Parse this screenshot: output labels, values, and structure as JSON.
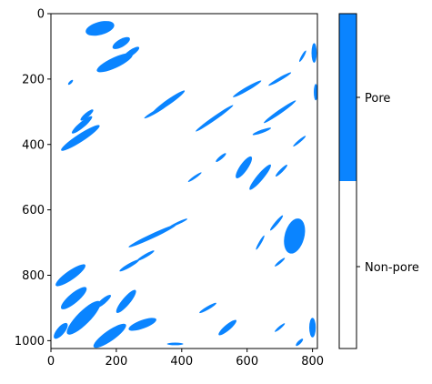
{
  "chart_data": {
    "type": "heatmap",
    "title": "",
    "xlabel": "",
    "ylabel": "",
    "x_range": [
      0,
      815
    ],
    "y_range": [
      0,
      1024
    ],
    "y_inverted": true,
    "x_ticks": [
      0,
      200,
      400,
      600,
      800
    ],
    "y_ticks": [
      0,
      200,
      400,
      600,
      800,
      1000
    ],
    "x_tick_labels": [
      "0",
      "200",
      "400",
      "600",
      "800"
    ],
    "y_tick_labels": [
      "0",
      "200",
      "400",
      "600",
      "800",
      "1000"
    ],
    "classes": [
      {
        "name": "Non-pore",
        "value": 0,
        "color": "#ffffff"
      },
      {
        "name": "Pore",
        "value": 1,
        "color": "#0a84ff"
      }
    ],
    "colorbar": {
      "labels": [
        "Pore",
        "Non-pore"
      ],
      "position": "right"
    },
    "pore_regions": [
      {
        "cx": 150,
        "cy": 45,
        "rx": 45,
        "ry": 20,
        "angle": -15
      },
      {
        "cx": 215,
        "cy": 90,
        "rx": 30,
        "ry": 12,
        "angle": -30
      },
      {
        "cx": 195,
        "cy": 150,
        "rx": 60,
        "ry": 16,
        "angle": -25
      },
      {
        "cx": 245,
        "cy": 120,
        "rx": 30,
        "ry": 9,
        "angle": -35
      },
      {
        "cx": 95,
        "cy": 340,
        "rx": 40,
        "ry": 9,
        "angle": -40
      },
      {
        "cx": 110,
        "cy": 310,
        "rx": 25,
        "ry": 7,
        "angle": -40
      },
      {
        "cx": 90,
        "cy": 380,
        "rx": 70,
        "ry": 12,
        "angle": -33
      },
      {
        "cx": 360,
        "cy": 270,
        "rx": 60,
        "ry": 8,
        "angle": -35
      },
      {
        "cx": 320,
        "cy": 300,
        "rx": 40,
        "ry": 5,
        "angle": -30
      },
      {
        "cx": 500,
        "cy": 320,
        "rx": 70,
        "ry": 6,
        "angle": -35
      },
      {
        "cx": 600,
        "cy": 230,
        "rx": 50,
        "ry": 6,
        "angle": -30
      },
      {
        "cx": 700,
        "cy": 300,
        "rx": 60,
        "ry": 6,
        "angle": -35
      },
      {
        "cx": 700,
        "cy": 200,
        "rx": 40,
        "ry": 5,
        "angle": -30
      },
      {
        "cx": 645,
        "cy": 360,
        "rx": 30,
        "ry": 5,
        "angle": -20
      },
      {
        "cx": 770,
        "cy": 130,
        "rx": 20,
        "ry": 4,
        "angle": -60
      },
      {
        "cx": 760,
        "cy": 390,
        "rx": 25,
        "ry": 4,
        "angle": -40
      },
      {
        "cx": 590,
        "cy": 470,
        "rx": 40,
        "ry": 12,
        "angle": -55
      },
      {
        "cx": 640,
        "cy": 500,
        "rx": 50,
        "ry": 10,
        "angle": -50
      },
      {
        "cx": 705,
        "cy": 480,
        "rx": 25,
        "ry": 5,
        "angle": -45
      },
      {
        "cx": 520,
        "cy": 440,
        "rx": 20,
        "ry": 5,
        "angle": -40
      },
      {
        "cx": 440,
        "cy": 500,
        "rx": 25,
        "ry": 4,
        "angle": -35
      },
      {
        "cx": 745,
        "cy": 680,
        "rx": 30,
        "ry": 55,
        "angle": 15
      },
      {
        "cx": 690,
        "cy": 640,
        "rx": 30,
        "ry": 5,
        "angle": -50
      },
      {
        "cx": 640,
        "cy": 700,
        "rx": 25,
        "ry": 4,
        "angle": -60
      },
      {
        "cx": 700,
        "cy": 760,
        "rx": 20,
        "ry": 4,
        "angle": -40
      },
      {
        "cx": 310,
        "cy": 680,
        "rx": 80,
        "ry": 7,
        "angle": -25
      },
      {
        "cx": 390,
        "cy": 640,
        "rx": 30,
        "ry": 4,
        "angle": -25
      },
      {
        "cx": 290,
        "cy": 740,
        "rx": 30,
        "ry": 5,
        "angle": -30
      },
      {
        "cx": 240,
        "cy": 770,
        "rx": 35,
        "ry": 6,
        "angle": -30
      },
      {
        "cx": 60,
        "cy": 800,
        "rx": 55,
        "ry": 14,
        "angle": -35
      },
      {
        "cx": 70,
        "cy": 870,
        "rx": 50,
        "ry": 15,
        "angle": -40
      },
      {
        "cx": 100,
        "cy": 930,
        "rx": 70,
        "ry": 20,
        "angle": -45
      },
      {
        "cx": 30,
        "cy": 970,
        "rx": 30,
        "ry": 12,
        "angle": -50
      },
      {
        "cx": 160,
        "cy": 880,
        "rx": 30,
        "ry": 8,
        "angle": -40
      },
      {
        "cx": 230,
        "cy": 880,
        "rx": 45,
        "ry": 12,
        "angle": -50
      },
      {
        "cx": 180,
        "cy": 985,
        "rx": 60,
        "ry": 16,
        "angle": -35
      },
      {
        "cx": 280,
        "cy": 950,
        "rx": 45,
        "ry": 13,
        "angle": -20
      },
      {
        "cx": 480,
        "cy": 900,
        "rx": 30,
        "ry": 5,
        "angle": -30
      },
      {
        "cx": 540,
        "cy": 960,
        "rx": 35,
        "ry": 9,
        "angle": -40
      },
      {
        "cx": 700,
        "cy": 960,
        "rx": 20,
        "ry": 4,
        "angle": -40
      },
      {
        "cx": 760,
        "cy": 1005,
        "rx": 15,
        "ry": 5,
        "angle": -45
      },
      {
        "cx": 800,
        "cy": 960,
        "rx": 10,
        "ry": 30,
        "angle": 0
      },
      {
        "cx": 805,
        "cy": 120,
        "rx": 8,
        "ry": 30,
        "angle": 0
      },
      {
        "cx": 810,
        "cy": 240,
        "rx": 6,
        "ry": 25,
        "angle": 0
      },
      {
        "cx": 380,
        "cy": 1010,
        "rx": 25,
        "ry": 4,
        "angle": 0
      },
      {
        "cx": 60,
        "cy": 210,
        "rx": 10,
        "ry": 4,
        "angle": -45
      }
    ]
  }
}
